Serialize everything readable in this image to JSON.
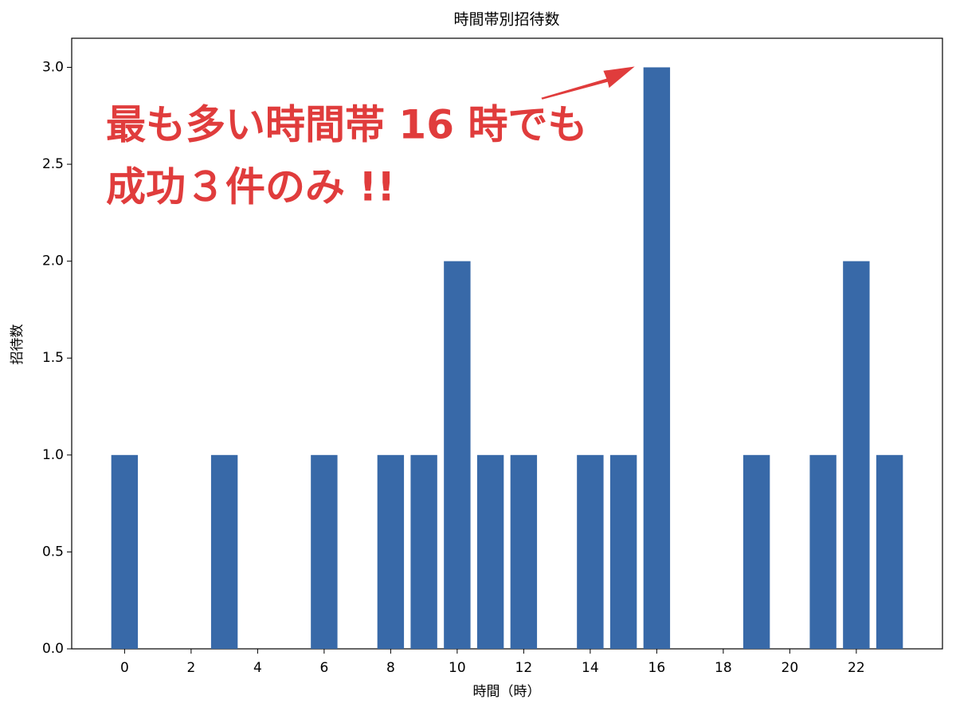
{
  "chart_data": {
    "type": "bar",
    "title": "時間帯別招待数",
    "x_label": "時間（時）",
    "y_label": "招待数",
    "x": [
      0,
      3,
      6,
      8,
      9,
      10,
      11,
      12,
      14,
      15,
      16,
      19,
      21,
      22,
      23
    ],
    "values": [
      1,
      1,
      1,
      1,
      1,
      2,
      1,
      1,
      1,
      1,
      3,
      1,
      1,
      2,
      1
    ],
    "color": "#3869a8",
    "xlim": [
      -1.59,
      24.59
    ],
    "xticks": [
      0,
      2,
      4,
      6,
      8,
      10,
      12,
      14,
      16,
      18,
      20,
      22
    ],
    "ylim": [
      0,
      3.15
    ],
    "yticks": [
      {
        "value": 0,
        "label": "0.0"
      },
      {
        "value": 0.5,
        "label": "0.5"
      },
      {
        "value": 1,
        "label": "1.0"
      },
      {
        "value": 1.5,
        "label": "1.5"
      },
      {
        "value": 2,
        "label": "2.0"
      },
      {
        "value": 2.5,
        "label": "2.5"
      },
      {
        "value": 3,
        "label": "3.0"
      }
    ],
    "annotation": [
      "最も多い時間帯 16 時でも",
      "成功３件のみ !!"
    ],
    "annotation_color": "#e03c3c"
  }
}
